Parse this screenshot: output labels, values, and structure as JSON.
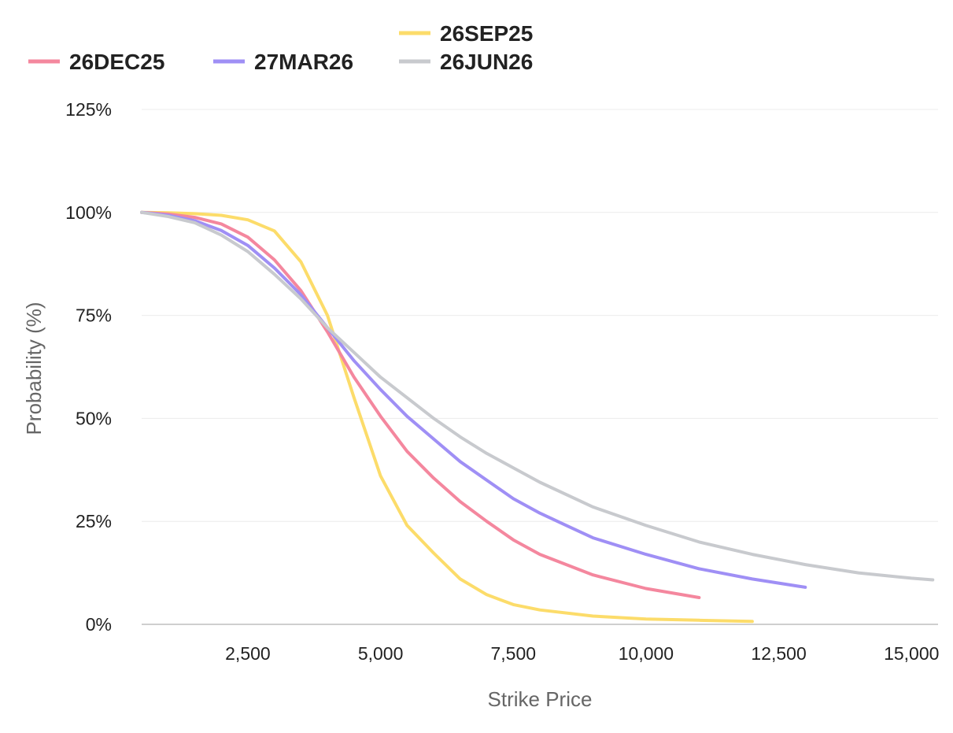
{
  "chart_data": {
    "type": "line",
    "title": "",
    "xlabel": "Strike Price",
    "ylabel": "Probability (%)",
    "xlim": [
      500,
      15500
    ],
    "ylim": [
      0,
      125
    ],
    "x_ticks": [
      2500,
      5000,
      7500,
      10000,
      12500,
      15000
    ],
    "x_tick_labels": [
      "2,500",
      "5,000",
      "7,500",
      "10,000",
      "12,500",
      "15,000"
    ],
    "y_ticks": [
      0,
      25,
      50,
      75,
      100,
      125
    ],
    "y_tick_labels": [
      "0%",
      "25%",
      "50%",
      "75%",
      "100%",
      "125%"
    ],
    "grid": true,
    "legend_position": "top",
    "series": [
      {
        "name": "26SEP25",
        "color": "#FCDC6A",
        "x": [
          500,
          1000,
          1500,
          2000,
          2500,
          3000,
          3500,
          4000,
          4500,
          5000,
          5500,
          6000,
          6500,
          7000,
          7500,
          8000,
          9000,
          10000,
          11000,
          12000
        ],
        "y": [
          100,
          99.9,
          99.7,
          99.3,
          98.2,
          95.5,
          88,
          75,
          55,
          36,
          24,
          17.3,
          11,
          7.2,
          4.8,
          3.5,
          2,
          1.3,
          1,
          0.7
        ]
      },
      {
        "name": "26DEC25",
        "color": "#F4879E",
        "x": [
          500,
          1000,
          1500,
          2000,
          2500,
          3000,
          3500,
          4000,
          4500,
          5000,
          5500,
          6000,
          6500,
          7000,
          7500,
          8000,
          9000,
          10000,
          11000
        ],
        "y": [
          100,
          99.6,
          98.8,
          97.2,
          94,
          88.5,
          81,
          71,
          60,
          50.5,
          42,
          35.5,
          29.8,
          25,
          20.5,
          17,
          12,
          8.7,
          6.5
        ]
      },
      {
        "name": "27MAR26",
        "color": "#9F8FF5",
        "x": [
          500,
          1000,
          1500,
          2000,
          2500,
          3000,
          3500,
          4000,
          4500,
          5000,
          5500,
          6000,
          6500,
          7000,
          7500,
          8000,
          8500,
          9000,
          10000,
          11000,
          12000,
          13000
        ],
        "y": [
          100,
          99.3,
          98,
          95.6,
          92,
          86.5,
          80,
          72,
          64,
          57,
          50.5,
          45,
          39.5,
          35,
          30.5,
          27,
          24,
          21,
          17,
          13.5,
          11,
          9
        ]
      },
      {
        "name": "26JUN26",
        "color": "#C8CACE",
        "x": [
          500,
          1000,
          1500,
          2000,
          2500,
          3000,
          3500,
          4000,
          4500,
          5000,
          5500,
          6000,
          6500,
          7000,
          7500,
          8000,
          9000,
          10000,
          11000,
          12000,
          13000,
          14000,
          15000,
          15400
        ],
        "y": [
          100,
          99,
          97.5,
          94.5,
          90.5,
          85,
          79,
          72,
          66,
          60,
          55,
          50,
          45.5,
          41.5,
          38,
          34.5,
          28.5,
          24,
          20,
          17,
          14.5,
          12.5,
          11.2,
          10.8
        ]
      }
    ]
  }
}
